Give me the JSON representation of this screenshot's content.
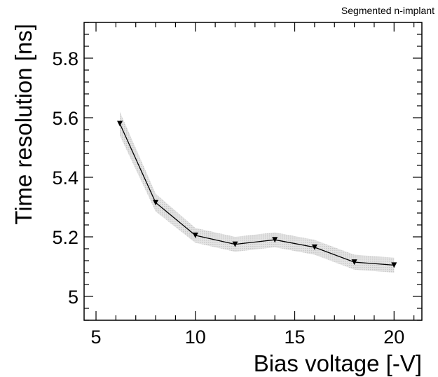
{
  "chart_data": {
    "type": "line",
    "corner_label": "Segmented n-implant",
    "xlabel": "Bias voltage [-V]",
    "ylabel": "Time resolution [ns]",
    "xlim": [
      4.4,
      21.4
    ],
    "ylim": [
      4.92,
      5.92
    ],
    "xticks": [
      5,
      10,
      15,
      20
    ],
    "yticks": [
      5,
      5.2,
      5.4,
      5.6,
      5.8
    ],
    "ytick_labels": [
      "5",
      "5.2",
      "5.4",
      "5.6",
      "5.8"
    ],
    "grid": false,
    "marker": "down-triangle",
    "series": [
      {
        "x": [
          6.2,
          8,
          10,
          12,
          14,
          16,
          18,
          20
        ],
        "y": [
          5.58,
          5.315,
          5.205,
          5.175,
          5.19,
          5.165,
          5.115,
          5.105
        ],
        "y_error": [
          0.04,
          0.03,
          0.025,
          0.025,
          0.025,
          0.025,
          0.025,
          0.025
        ]
      }
    ],
    "colors": {
      "line": "#000000",
      "marker": "#000000",
      "error_band": "#c8c8c8"
    }
  }
}
